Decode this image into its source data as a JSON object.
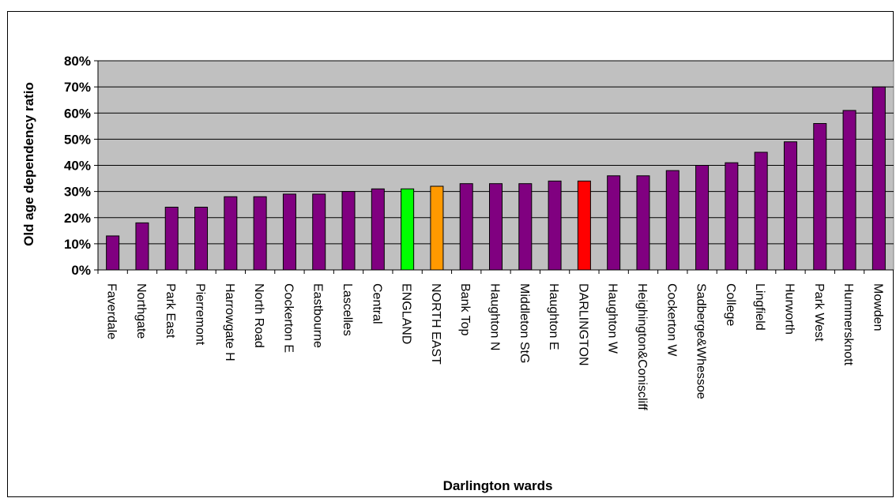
{
  "chart_data": {
    "type": "bar",
    "title": "",
    "xlabel": "Darlington wards",
    "ylabel": "Old age dependency ratio",
    "ylim": [
      0,
      80
    ],
    "yticks": [
      "0%",
      "10%",
      "20%",
      "30%",
      "40%",
      "50%",
      "60%",
      "70%",
      "80%"
    ],
    "grid": true,
    "legend": "none",
    "plot_background": "#c0c0c0",
    "default_bar_color": "#800080",
    "categories": [
      "Faverdale",
      "Northgate",
      "Park East",
      "Pierremont",
      "Harrowgate H",
      "North Road",
      "Cockerton E",
      "Eastbourne",
      "Lascelles",
      "Central",
      "ENGLAND",
      "NORTH EAST",
      "Bank Top",
      "Haughton N",
      "Middleton StG",
      "Haughton E",
      "DARLINGTON",
      "Haughton W",
      "Heighington&Coniscliff",
      "Cockerton W",
      "Sadberge&Whessoe",
      "College",
      "Lingfield",
      "Hurworth",
      "Park West",
      "Hummersknott",
      "Mowden"
    ],
    "values": [
      13,
      18,
      24,
      24,
      28,
      28,
      29,
      29,
      30,
      31,
      31,
      32,
      33,
      33,
      33,
      34,
      34,
      36,
      36,
      38,
      40,
      41,
      45,
      49,
      56,
      61,
      70
    ],
    "highlight_colors": {
      "ENGLAND": "#00ff00",
      "NORTH EAST": "#ff9900",
      "DARLINGTON": "#ff0000"
    }
  }
}
